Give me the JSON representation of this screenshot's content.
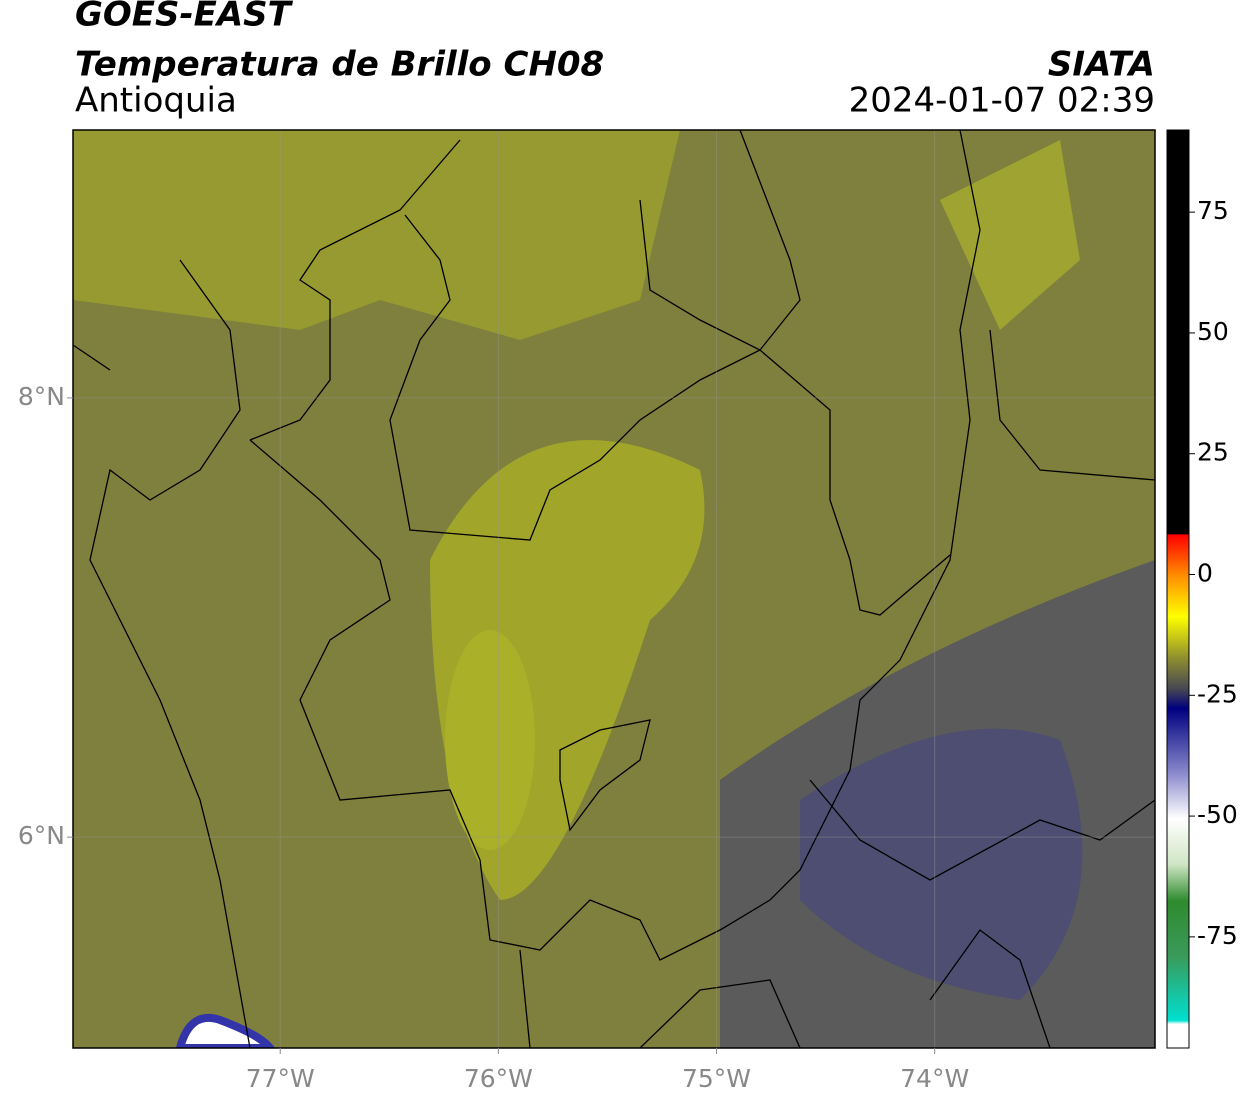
{
  "map": {
    "title": "GOES-EAST",
    "subtitle": "Temperatura de Brillo CH08",
    "source": "SIATA",
    "region": "Antioquia",
    "datetime": "2024-01-07 02:39",
    "xlim": [
      -77.95,
      -72.99
    ],
    "ylim": [
      5.04,
      9.22
    ],
    "xticks": [
      {
        "value": -77,
        "label": "77°W"
      },
      {
        "value": -76,
        "label": "76°W"
      },
      {
        "value": -75,
        "label": "75°W"
      },
      {
        "value": -74,
        "label": "74°W"
      }
    ],
    "yticks": [
      {
        "value": 6,
        "label": "6°N"
      },
      {
        "value": 8,
        "label": "8°N"
      }
    ],
    "grid": true,
    "colorbar": {
      "clim": [
        -98,
        92
      ],
      "ticks": [
        75,
        50,
        25,
        0,
        -25,
        -50,
        -75
      ]
    }
  }
}
